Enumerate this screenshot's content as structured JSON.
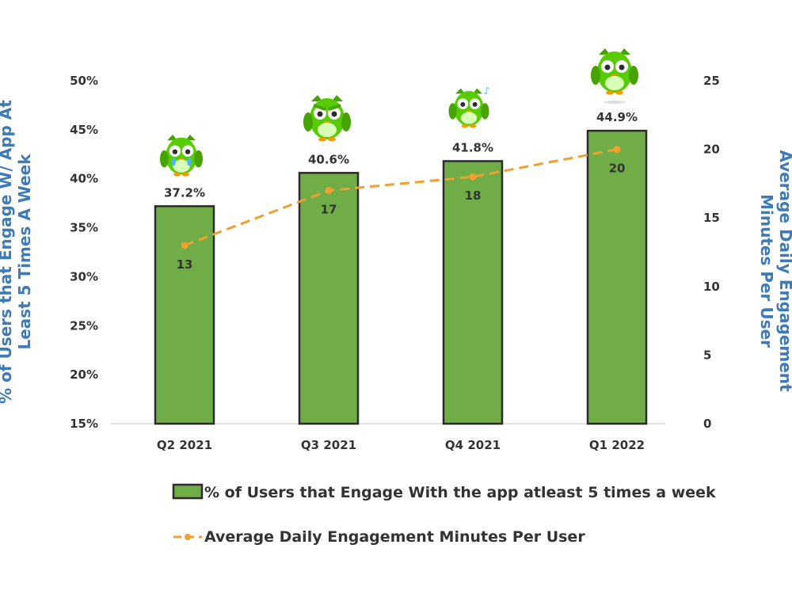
{
  "colors": {
    "bar_fill": "#70ad47",
    "bar_stroke": "#2b2b2b",
    "line": "#f0a030",
    "axis_title": "#3d7ab8",
    "owl": "#58cc02"
  },
  "icons": [
    "owl-crying-icon",
    "owl-angry-icon",
    "owl-singing-icon",
    "owl-celebrating-icon"
  ],
  "chart_data": {
    "type": "bar",
    "categories": [
      "Q2 2021",
      "Q3 2021",
      "Q4 2021",
      "Q1 2022"
    ],
    "series": [
      {
        "name": "% of Users that Engage With the app atleast 5 times a week",
        "type": "bar",
        "axis": "left",
        "values": [
          37.2,
          40.6,
          41.8,
          44.9
        ],
        "labels": [
          "37.2%",
          "40.6%",
          "41.8%",
          "44.9%"
        ]
      },
      {
        "name": "Average Daily Engagement Minutes Per User",
        "type": "line",
        "style": "dashed",
        "axis": "right",
        "values": [
          13,
          17,
          18,
          20
        ],
        "labels": [
          "13",
          "17",
          "18",
          "20"
        ]
      }
    ],
    "ylabel": "% of Users that Engage W/ App At Least 5 Times A Week",
    "ylabel_lines": [
      "% of Users that Engage W/ App At",
      "Least 5 Times A Week"
    ],
    "y2label": "Average Daily Engagement Minutes Per User",
    "y2label_lines": [
      "Average Daily Engagement",
      "Minutes  Per User"
    ],
    "ylim": [
      15,
      50
    ],
    "yticks": [
      "15%",
      "20%",
      "25%",
      "30%",
      "35%",
      "40%",
      "45%",
      "50%"
    ],
    "y2lim": [
      0,
      25
    ],
    "y2ticks": [
      "0",
      "5",
      "10",
      "15",
      "20",
      "25"
    ],
    "grid": false,
    "legend_position": "bottom"
  }
}
